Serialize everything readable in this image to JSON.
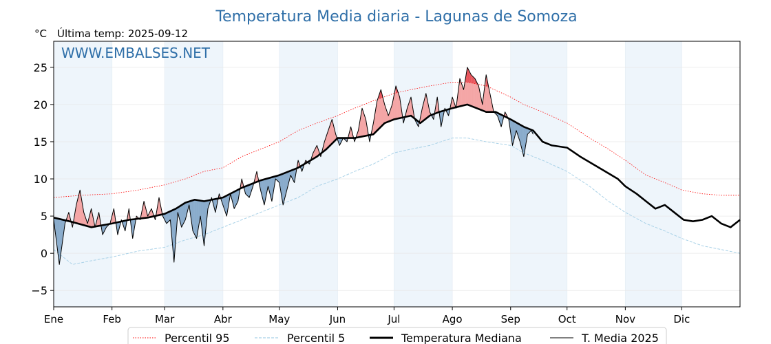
{
  "chart_data": {
    "type": "line",
    "title": "Temperatura Media diaria - Lagunas de Somoza",
    "unit_label": "°C",
    "subtitle": "Última temp: 2025-09-12",
    "watermark": "WWW.EMBALSES.NET",
    "ylim": [
      -7.2,
      28.5
    ],
    "yticks": [
      -5,
      0,
      5,
      10,
      15,
      20,
      25
    ],
    "x_range_days": [
      0,
      365
    ],
    "months": [
      {
        "label": "Ene",
        "start": 0
      },
      {
        "label": "Feb",
        "start": 31
      },
      {
        "label": "Mar",
        "start": 59
      },
      {
        "label": "Abr",
        "start": 90
      },
      {
        "label": "May",
        "start": 120
      },
      {
        "label": "Jun",
        "start": 151
      },
      {
        "label": "Jul",
        "start": 181
      },
      {
        "label": "Ago",
        "start": 212
      },
      {
        "label": "Sep",
        "start": 243
      },
      {
        "label": "Oct",
        "start": 273
      },
      {
        "label": "Nov",
        "start": 304
      },
      {
        "label": "Dic",
        "start": 334
      }
    ],
    "last_day_2025": 255,
    "series": [
      {
        "name": "Percentil 95",
        "color": "#ff0000",
        "style": "dotted",
        "points": [
          [
            0,
            7.5
          ],
          [
            15,
            7.8
          ],
          [
            31,
            8.0
          ],
          [
            45,
            8.5
          ],
          [
            59,
            9.2
          ],
          [
            70,
            10
          ],
          [
            80,
            11
          ],
          [
            90,
            11.5
          ],
          [
            100,
            13
          ],
          [
            110,
            14
          ],
          [
            120,
            15
          ],
          [
            130,
            16.5
          ],
          [
            140,
            17.5
          ],
          [
            151,
            18.5
          ],
          [
            160,
            19.5
          ],
          [
            170,
            20.5
          ],
          [
            181,
            21.5
          ],
          [
            190,
            22.0
          ],
          [
            200,
            22.5
          ],
          [
            212,
            23.0
          ],
          [
            220,
            23.0
          ],
          [
            230,
            22.5
          ],
          [
            243,
            21.0
          ],
          [
            250,
            20.0
          ],
          [
            260,
            19.0
          ],
          [
            273,
            17.5
          ],
          [
            285,
            15.5
          ],
          [
            295,
            14.0
          ],
          [
            304,
            12.5
          ],
          [
            315,
            10.5
          ],
          [
            325,
            9.5
          ],
          [
            334,
            8.5
          ],
          [
            345,
            8.0
          ],
          [
            355,
            7.8
          ],
          [
            365,
            7.8
          ]
        ]
      },
      {
        "name": "Percentil 5",
        "color": "#a8d1e7",
        "style": "dashed",
        "points": [
          [
            0,
            0.5
          ],
          [
            10,
            -1.5
          ],
          [
            20,
            -1.0
          ],
          [
            31,
            -0.5
          ],
          [
            45,
            0.3
          ],
          [
            59,
            0.8
          ],
          [
            70,
            1.8
          ],
          [
            80,
            2.5
          ],
          [
            90,
            3.5
          ],
          [
            100,
            4.5
          ],
          [
            110,
            5.5
          ],
          [
            120,
            6.5
          ],
          [
            130,
            7.5
          ],
          [
            140,
            9.0
          ],
          [
            151,
            10.0
          ],
          [
            160,
            11.0
          ],
          [
            170,
            12.0
          ],
          [
            181,
            13.5
          ],
          [
            190,
            14.0
          ],
          [
            200,
            14.5
          ],
          [
            212,
            15.5
          ],
          [
            220,
            15.5
          ],
          [
            230,
            15.0
          ],
          [
            243,
            14.5
          ],
          [
            250,
            13.5
          ],
          [
            260,
            12.5
          ],
          [
            273,
            11.0
          ],
          [
            285,
            9.0
          ],
          [
            295,
            7.0
          ],
          [
            304,
            5.5
          ],
          [
            315,
            4.0
          ],
          [
            325,
            3.0
          ],
          [
            334,
            2.0
          ],
          [
            345,
            1.0
          ],
          [
            355,
            0.5
          ],
          [
            365,
            0.0
          ]
        ]
      },
      {
        "name": "Temperatura Mediana",
        "color": "#000000",
        "style": "solid-thick",
        "points": [
          [
            0,
            4.8
          ],
          [
            10,
            4.2
          ],
          [
            20,
            3.5
          ],
          [
            31,
            4.0
          ],
          [
            40,
            4.5
          ],
          [
            50,
            4.8
          ],
          [
            59,
            5.3
          ],
          [
            65,
            6.0
          ],
          [
            70,
            6.8
          ],
          [
            75,
            7.2
          ],
          [
            80,
            7.0
          ],
          [
            90,
            7.5
          ],
          [
            100,
            8.8
          ],
          [
            110,
            9.8
          ],
          [
            120,
            10.5
          ],
          [
            130,
            11.5
          ],
          [
            140,
            13.0
          ],
          [
            145,
            14.0
          ],
          [
            151,
            15.5
          ],
          [
            160,
            15.5
          ],
          [
            170,
            16.0
          ],
          [
            176,
            17.5
          ],
          [
            181,
            18.0
          ],
          [
            190,
            18.5
          ],
          [
            195,
            17.5
          ],
          [
            200,
            18.5
          ],
          [
            205,
            19.0
          ],
          [
            212,
            19.5
          ],
          [
            220,
            20.0
          ],
          [
            225,
            19.5
          ],
          [
            230,
            19.0
          ],
          [
            235,
            19.0
          ],
          [
            243,
            18.0
          ],
          [
            250,
            17.0
          ],
          [
            255,
            16.5
          ],
          [
            260,
            15.0
          ],
          [
            265,
            14.5
          ],
          [
            273,
            14.2
          ],
          [
            280,
            13.0
          ],
          [
            290,
            11.5
          ],
          [
            300,
            10.0
          ],
          [
            304,
            9.0
          ],
          [
            310,
            8.0
          ],
          [
            315,
            7.0
          ],
          [
            320,
            6.0
          ],
          [
            325,
            6.5
          ],
          [
            330,
            5.5
          ],
          [
            335,
            4.5
          ],
          [
            340,
            4.3
          ],
          [
            345,
            4.5
          ],
          [
            350,
            5.0
          ],
          [
            355,
            4.0
          ],
          [
            360,
            3.5
          ],
          [
            365,
            4.5
          ]
        ]
      },
      {
        "name": "T. Media 2025",
        "color": "#000000",
        "style": "solid",
        "points": [
          [
            0,
            4.5
          ],
          [
            3,
            -1.5
          ],
          [
            6,
            4.0
          ],
          [
            8,
            5.5
          ],
          [
            10,
            3.5
          ],
          [
            12,
            6.5
          ],
          [
            14,
            8.5
          ],
          [
            16,
            5.5
          ],
          [
            18,
            4.0
          ],
          [
            20,
            6.0
          ],
          [
            22,
            3.5
          ],
          [
            24,
            5.5
          ],
          [
            26,
            2.5
          ],
          [
            28,
            3.5
          ],
          [
            30,
            4.0
          ],
          [
            32,
            6.0
          ],
          [
            34,
            2.5
          ],
          [
            36,
            4.5
          ],
          [
            38,
            3.0
          ],
          [
            40,
            6.0
          ],
          [
            42,
            2.0
          ],
          [
            44,
            5.0
          ],
          [
            46,
            4.5
          ],
          [
            48,
            7.0
          ],
          [
            50,
            5.0
          ],
          [
            52,
            6.0
          ],
          [
            54,
            4.5
          ],
          [
            56,
            7.5
          ],
          [
            58,
            5.0
          ],
          [
            60,
            4.0
          ],
          [
            62,
            4.5
          ],
          [
            64,
            -1.2
          ],
          [
            66,
            5.5
          ],
          [
            68,
            3.5
          ],
          [
            70,
            4.5
          ],
          [
            72,
            6.5
          ],
          [
            74,
            3.0
          ],
          [
            76,
            2.0
          ],
          [
            78,
            5.0
          ],
          [
            80,
            1.0
          ],
          [
            82,
            6.0
          ],
          [
            84,
            7.5
          ],
          [
            86,
            5.5
          ],
          [
            88,
            8.0
          ],
          [
            90,
            6.5
          ],
          [
            92,
            5.0
          ],
          [
            94,
            8.0
          ],
          [
            96,
            6.0
          ],
          [
            98,
            7.0
          ],
          [
            100,
            10.0
          ],
          [
            102,
            8.0
          ],
          [
            104,
            7.5
          ],
          [
            106,
            9.0
          ],
          [
            108,
            11.0
          ],
          [
            110,
            8.5
          ],
          [
            112,
            6.5
          ],
          [
            114,
            9.0
          ],
          [
            116,
            7.0
          ],
          [
            118,
            10.0
          ],
          [
            120,
            9.5
          ],
          [
            122,
            6.5
          ],
          [
            124,
            8.5
          ],
          [
            126,
            10.5
          ],
          [
            128,
            9.5
          ],
          [
            130,
            12.5
          ],
          [
            132,
            11.0
          ],
          [
            134,
            12.5
          ],
          [
            136,
            12.0
          ],
          [
            138,
            13.5
          ],
          [
            140,
            14.5
          ],
          [
            142,
            13.0
          ],
          [
            144,
            15.0
          ],
          [
            146,
            16.5
          ],
          [
            148,
            18.0
          ],
          [
            150,
            16.0
          ],
          [
            152,
            14.5
          ],
          [
            154,
            15.5
          ],
          [
            156,
            15.0
          ],
          [
            158,
            17.0
          ],
          [
            160,
            15.0
          ],
          [
            162,
            16.5
          ],
          [
            164,
            19.5
          ],
          [
            166,
            18.0
          ],
          [
            168,
            15.0
          ],
          [
            170,
            17.5
          ],
          [
            172,
            20.5
          ],
          [
            174,
            22.0
          ],
          [
            176,
            20.0
          ],
          [
            178,
            18.5
          ],
          [
            180,
            20.0
          ],
          [
            182,
            22.5
          ],
          [
            184,
            21.0
          ],
          [
            186,
            17.5
          ],
          [
            188,
            19.5
          ],
          [
            190,
            21.0
          ],
          [
            192,
            18.0
          ],
          [
            194,
            17.0
          ],
          [
            196,
            19.5
          ],
          [
            198,
            21.5
          ],
          [
            200,
            19.0
          ],
          [
            202,
            18.0
          ],
          [
            204,
            21.0
          ],
          [
            206,
            17.0
          ],
          [
            208,
            19.5
          ],
          [
            210,
            18.5
          ],
          [
            212,
            21.0
          ],
          [
            214,
            19.5
          ],
          [
            216,
            23.5
          ],
          [
            218,
            22.0
          ],
          [
            220,
            25.0
          ],
          [
            222,
            24.0
          ],
          [
            224,
            23.5
          ],
          [
            226,
            22.5
          ],
          [
            228,
            20.0
          ],
          [
            230,
            24.0
          ],
          [
            232,
            21.5
          ],
          [
            234,
            19.0
          ],
          [
            236,
            18.5
          ],
          [
            238,
            17.0
          ],
          [
            240,
            19.0
          ],
          [
            242,
            18.0
          ],
          [
            244,
            14.5
          ],
          [
            246,
            16.5
          ],
          [
            248,
            15.0
          ],
          [
            250,
            13.0
          ],
          [
            252,
            16.0
          ],
          [
            254,
            16.5
          ],
          [
            255,
            16.0
          ]
        ]
      }
    ],
    "legend": {
      "position": "bottom",
      "entries": [
        "Percentil 95",
        "Percentil 5",
        "Temperatura Mediana",
        "T. Media 2025"
      ]
    },
    "colors": {
      "above_median_fill": "#f4a6a6",
      "above_p95_fill": "#e8535a",
      "below_median_fill": "#8aaccc",
      "below_p5_fill": "#2a5a8c",
      "alternate_month_band": "#eef5fb",
      "title_color": "#2f6fa8"
    }
  }
}
